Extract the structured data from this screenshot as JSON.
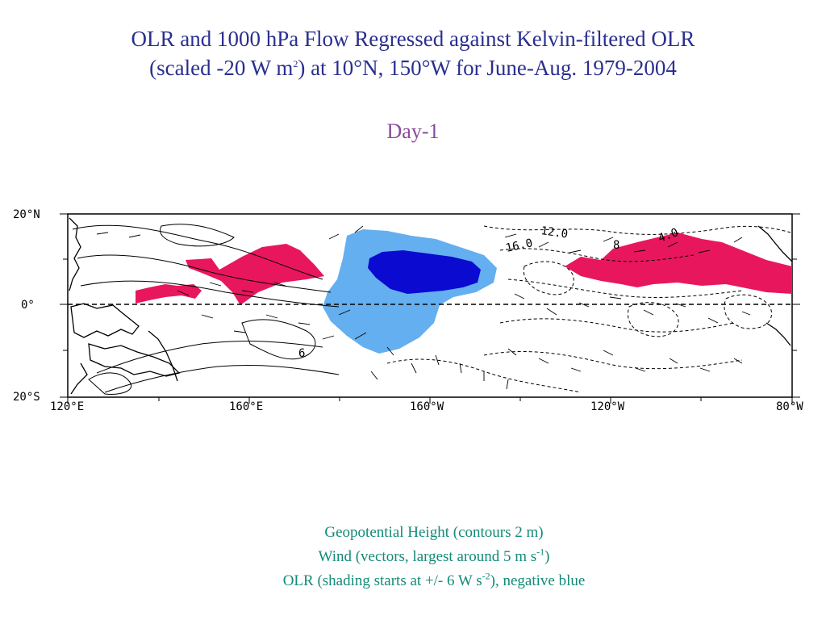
{
  "title": {
    "line1": "OLR and 1000 hPa Flow Regressed against Kelvin-filtered OLR",
    "line2_pre": "(scaled -20 W m",
    "line2_sup": "2",
    "line2_post": ") at 10°N, 150°W for June-Aug. 1979-2004"
  },
  "subtitle": "Day-1",
  "map": {
    "lat_labels": [
      "20°N",
      "0°",
      "20°S"
    ],
    "lon_labels": [
      "120°E",
      "160°E",
      "160°W",
      "120°W",
      "80°W"
    ],
    "contour_labels": [
      "12.0",
      "16.0",
      "8",
      "4.0",
      "6"
    ],
    "shading_colors": {
      "positive": "#e8175d",
      "negative_light": "#64aff0",
      "negative_dark": "#0a0ad0"
    }
  },
  "caption": {
    "line1": "Geopotential Height (contours 2 m)",
    "line2_pre": "Wind (vectors, largest around 5 m s",
    "line2_sup": "-1",
    "line2_post": ")",
    "line3_pre": "OLR (shading starts at +/- 6 W s",
    "line3_sup": "-2",
    "line3_post": "), negative blue"
  }
}
